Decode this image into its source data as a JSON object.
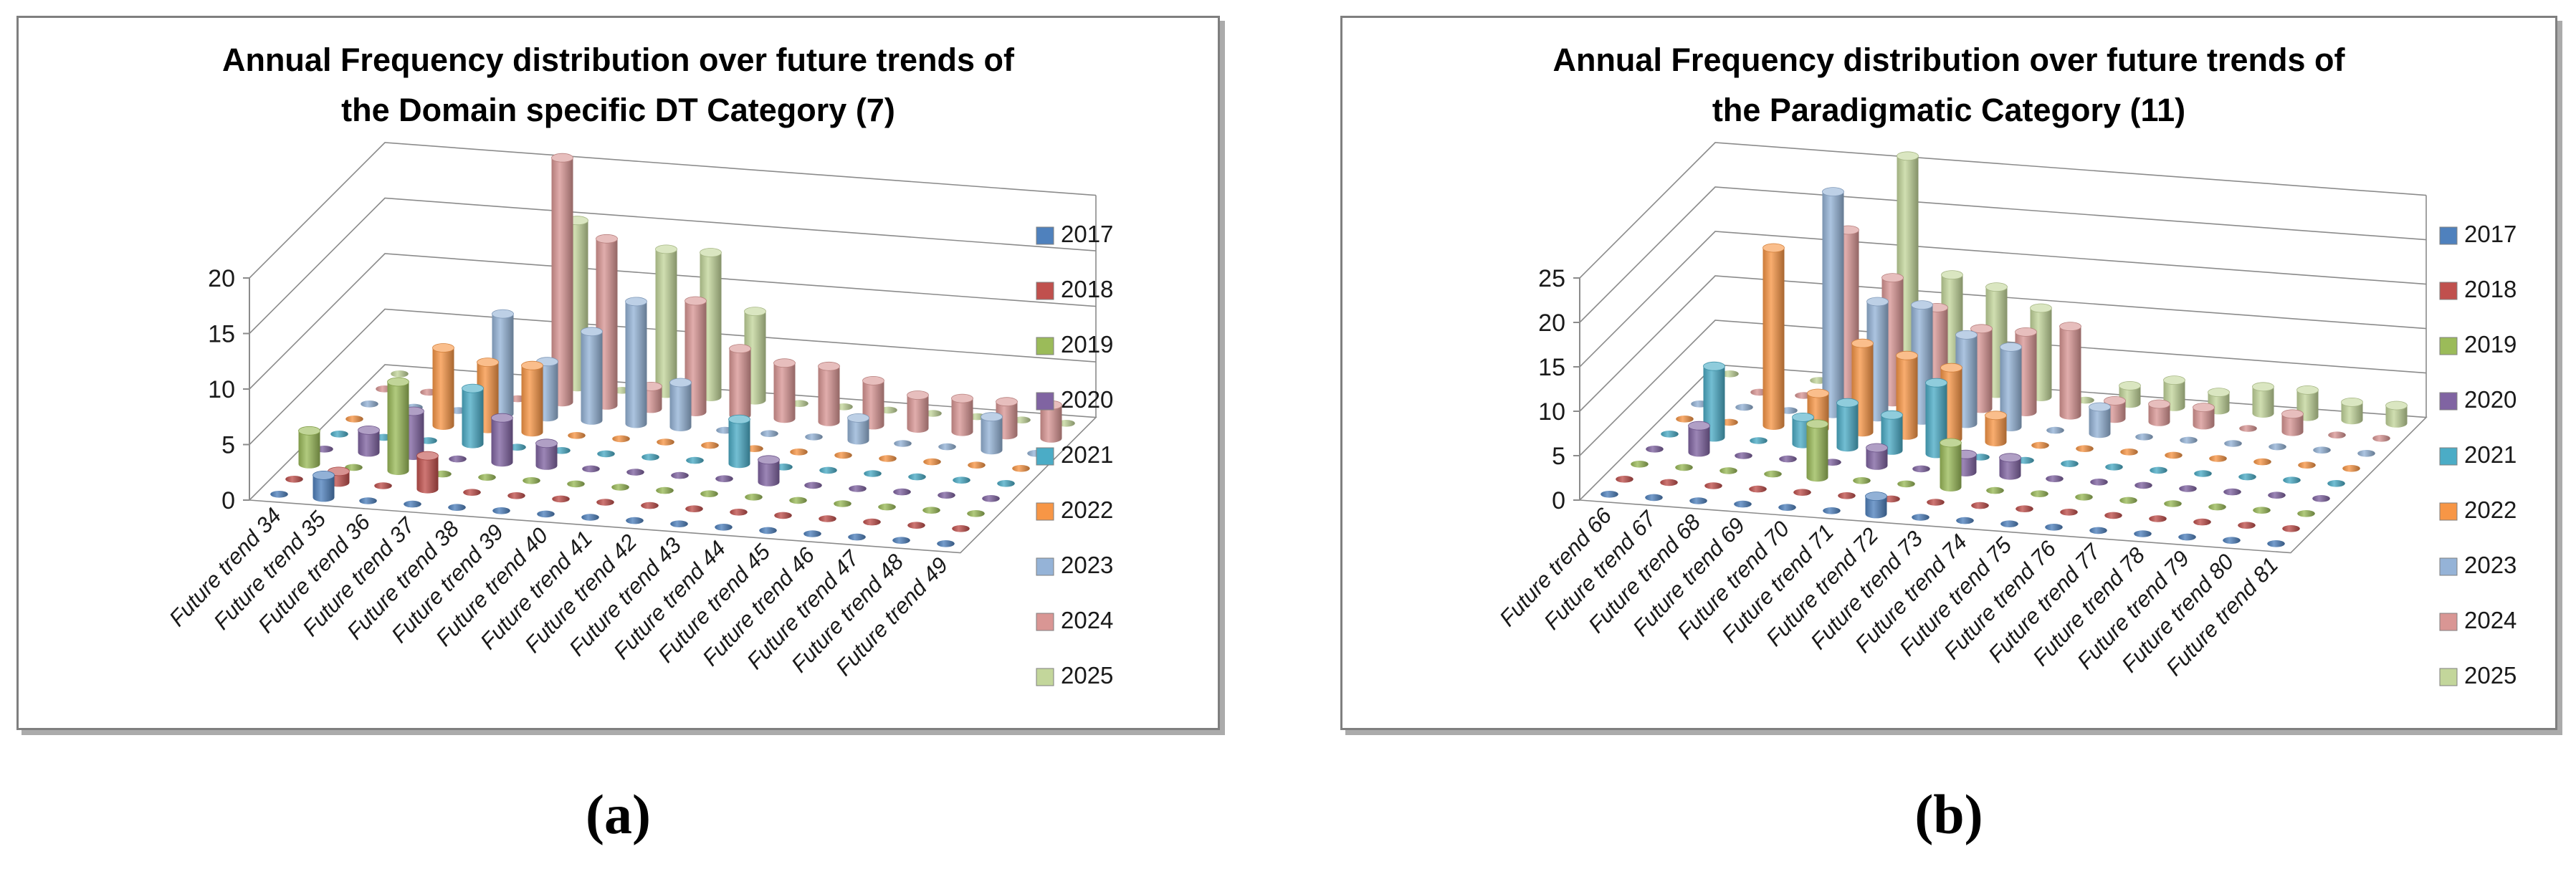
{
  "captions": {
    "a": "(a)",
    "b": "(b)"
  },
  "axis": {
    "tick_color": "#8b8b8b",
    "text_color": "#1a1a1a"
  },
  "chart_data": [
    {
      "id": "a",
      "type": "bar",
      "subtype": "3d-cylinder-column",
      "title": "Annual Frequency distribution over future trends of the Domain specific DT Category (7)",
      "title_line1": "Annual Frequency distribution over future trends of",
      "title_line2": "the Domain specific DT Category (7)",
      "xlabel": "",
      "ylabel": "",
      "ylim": [
        0,
        20
      ],
      "ytick": 5,
      "grid": true,
      "legend_position": "right",
      "categories": [
        "Future trend 34",
        "Future trend 35",
        "Future trend 36",
        "Future trend 37",
        "Future trend 38",
        "Future trend 39",
        "Future trend 40",
        "Future trend 41",
        "Future trend 42",
        "Future trend 43",
        "Future trend 44",
        "Future trend 45",
        "Future trend 46",
        "Future trend 47",
        "Future trend 48",
        "Future trend 49"
      ],
      "series": [
        {
          "name": "2017",
          "color": "#4F81BD",
          "values": [
            0,
            2,
            0,
            0,
            0,
            0,
            0,
            0,
            0,
            0,
            0,
            0,
            0,
            0,
            0,
            0
          ]
        },
        {
          "name": "2018",
          "color": "#C0504D",
          "values": [
            0,
            1,
            0,
            3,
            0,
            0,
            0,
            0,
            0,
            0,
            0,
            0,
            0,
            0,
            0,
            0
          ]
        },
        {
          "name": "2019",
          "color": "#9BBB59",
          "values": [
            3,
            0,
            8,
            0,
            0,
            0,
            0,
            0,
            0,
            0,
            0,
            0,
            0,
            0,
            0,
            0
          ]
        },
        {
          "name": "2020",
          "color": "#8064A2",
          "values": [
            0,
            2,
            4,
            0,
            4,
            2,
            0,
            0,
            0,
            0,
            2,
            0,
            0,
            0,
            0,
            0
          ]
        },
        {
          "name": "2021",
          "color": "#4BACC6",
          "values": [
            0,
            0,
            0,
            5,
            0,
            0,
            0,
            0,
            0,
            4,
            0,
            0,
            0,
            0,
            0,
            0
          ]
        },
        {
          "name": "2022",
          "color": "#F79646",
          "values": [
            0,
            0,
            7,
            6,
            6,
            0,
            0,
            0,
            0,
            0,
            0,
            0,
            0,
            0,
            0,
            0
          ]
        },
        {
          "name": "2023",
          "color": "#95B3D7",
          "values": [
            0,
            0,
            0,
            9,
            5,
            8,
            11,
            4,
            0,
            0,
            0,
            2,
            0,
            0,
            3,
            0
          ]
        },
        {
          "name": "2024",
          "color": "#D99694",
          "values": [
            0,
            0,
            0,
            0,
            22,
            15,
            2,
            10,
            6,
            5,
            5,
            4,
            3,
            3,
            3,
            3
          ]
        },
        {
          "name": "2025",
          "color": "#C3D69B",
          "values": [
            0,
            0,
            0,
            0,
            15,
            0,
            13,
            13,
            8,
            0,
            0,
            0,
            0,
            0,
            0,
            0
          ]
        }
      ]
    },
    {
      "id": "b",
      "type": "bar",
      "subtype": "3d-cylinder-column",
      "title": "Annual Frequency distribution over future trends of the Paradigmatic Category (11)",
      "title_line1": "Annual Frequency distribution over future trends of",
      "title_line2": "the Paradigmatic Category (11)",
      "xlabel": "",
      "ylabel": "",
      "ylim": [
        0,
        25
      ],
      "ytick": 5,
      "grid": true,
      "legend_position": "right",
      "categories": [
        "Future trend 66",
        "Future trend 67",
        "Future trend 68",
        "Future trend 69",
        "Future trend 70",
        "Future trend 71",
        "Future trend 72",
        "Future trend 73",
        "Future trend 74",
        "Future trend 75",
        "Future trend 76",
        "Future trend 77",
        "Future trend 78",
        "Future trend 79",
        "Future trend 80",
        "Future trend 81"
      ],
      "series": [
        {
          "name": "2017",
          "color": "#4F81BD",
          "values": [
            0,
            0,
            0,
            0,
            0,
            0,
            2,
            0,
            0,
            0,
            0,
            0,
            0,
            0,
            0,
            0
          ]
        },
        {
          "name": "2018",
          "color": "#C0504D",
          "values": [
            0,
            0,
            0,
            0,
            0,
            0,
            0,
            0,
            0,
            0,
            0,
            0,
            0,
            0,
            0,
            0
          ]
        },
        {
          "name": "2019",
          "color": "#9BBB59",
          "values": [
            0,
            0,
            0,
            0,
            6,
            0,
            0,
            5,
            0,
            0,
            0,
            0,
            0,
            0,
            0,
            0
          ]
        },
        {
          "name": "2020",
          "color": "#8064A2",
          "values": [
            0,
            3,
            0,
            0,
            0,
            2,
            0,
            2,
            2,
            0,
            0,
            0,
            0,
            0,
            0,
            0
          ]
        },
        {
          "name": "2021",
          "color": "#4BACC6",
          "values": [
            0,
            8,
            0,
            3,
            5,
            4,
            8,
            0,
            0,
            0,
            0,
            0,
            0,
            0,
            0,
            0
          ]
        },
        {
          "name": "2022",
          "color": "#F79646",
          "values": [
            0,
            0,
            20,
            4,
            10,
            9,
            8,
            3,
            0,
            0,
            0,
            0,
            0,
            0,
            0,
            0
          ]
        },
        {
          "name": "2023",
          "color": "#95B3D7",
          "values": [
            0,
            0,
            0,
            25,
            13,
            13,
            10,
            9,
            0,
            3,
            0,
            0,
            0,
            0,
            0,
            0
          ]
        },
        {
          "name": "2024",
          "color": "#D99694",
          "values": [
            0,
            0,
            0,
            19,
            14,
            11,
            9,
            9,
            10,
            2,
            2,
            2,
            0,
            2,
            0,
            0
          ]
        },
        {
          "name": "2025",
          "color": "#C3D69B",
          "values": [
            0,
            0,
            0,
            0,
            26,
            13,
            12,
            10,
            0,
            2,
            3,
            2,
            3,
            3,
            2,
            2
          ]
        }
      ]
    }
  ]
}
